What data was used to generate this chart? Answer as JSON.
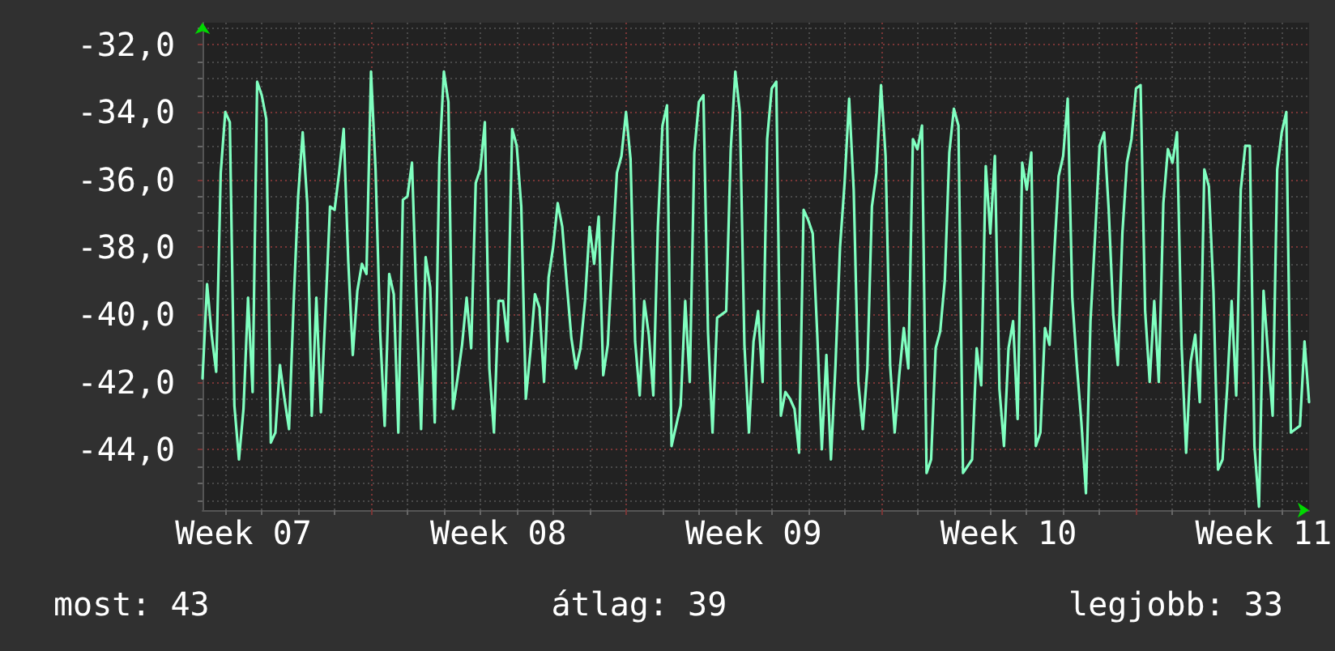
{
  "chart_data": {
    "type": "line",
    "color": "#80ffc0",
    "marker": "none",
    "grid": true,
    "annotations": [
      "most: 43",
      "átlag: 39",
      "legjobb: 33"
    ],
    "categories": [
      null,
      null,
      null,
      null,
      null,
      null,
      null,
      null,
      null,
      "Week 07",
      null,
      null,
      null,
      null,
      null,
      null,
      null,
      null,
      null,
      null,
      null,
      null,
      null,
      null,
      null,
      null,
      null,
      null,
      null,
      null,
      null,
      null,
      null,
      null,
      null,
      null,
      null,
      null,
      null,
      null,
      null,
      null,
      null,
      null,
      null,
      null,
      null,
      null,
      null,
      null,
      null,
      null,
      null,
      null,
      null,
      null,
      null,
      null,
      null,
      null,
      null,
      null,
      null,
      null,
      null,
      "Week 08",
      null,
      null,
      null,
      null,
      null,
      null,
      null,
      null,
      null,
      null,
      null,
      null,
      null,
      null,
      null,
      null,
      null,
      null,
      null,
      null,
      null,
      null,
      null,
      null,
      null,
      null,
      null,
      null,
      null,
      null,
      null,
      null,
      null,
      null,
      null,
      null,
      null,
      null,
      null,
      null,
      null,
      null,
      null,
      null,
      null,
      null,
      null,
      null,
      null,
      null,
      null,
      null,
      null,
      null,
      null,
      "Week 09",
      null,
      null,
      null,
      null,
      null,
      null,
      null,
      null,
      null,
      null,
      null,
      null,
      null,
      null,
      null,
      null,
      null,
      null,
      null,
      null,
      null,
      null,
      null,
      null,
      null,
      null,
      null,
      null,
      null,
      null,
      null,
      null,
      null,
      null,
      null,
      null,
      null,
      null,
      null,
      null,
      null,
      null,
      null,
      null,
      null,
      null,
      null,
      null,
      null,
      null,
      null,
      null,
      null,
      null,
      null,
      "Week 10",
      null,
      null,
      null,
      null,
      null,
      null,
      null,
      null,
      null,
      null,
      null,
      null,
      null,
      null,
      null,
      null,
      null,
      null,
      null,
      null,
      null,
      null,
      null,
      null,
      null,
      null,
      null,
      null,
      null,
      null,
      null,
      null,
      null,
      null,
      null,
      null,
      null,
      null,
      null,
      null,
      null,
      null,
      null,
      null,
      null,
      null,
      null,
      null,
      null,
      null,
      null,
      null,
      null,
      null,
      null,
      "Week 11",
      null,
      null,
      null,
      null,
      null,
      null,
      null,
      null,
      null,
      null
    ],
    "ylim": [
      -45.8,
      -31.35
    ],
    "yticks": [
      {
        "value": -32,
        "label": "-32,0"
      },
      {
        "value": -34,
        "label": "-34,0"
      },
      {
        "value": -36,
        "label": "-36,0"
      },
      {
        "value": -38,
        "label": "-38,0"
      },
      {
        "value": -40,
        "label": "-40,0"
      },
      {
        "value": -42,
        "label": "-42,0"
      },
      {
        "value": -44,
        "label": "-44,0"
      },
      {
        "value": -45.5,
        "label": null
      },
      {
        "value": -45,
        "label": null
      },
      {
        "value": -44.5,
        "label": null
      },
      {
        "value": -43.5,
        "label": null
      },
      {
        "value": -43,
        "label": null
      },
      {
        "value": -42.5,
        "label": null
      },
      {
        "value": -41.5,
        "label": null
      },
      {
        "value": -41,
        "label": null
      },
      {
        "value": -40.5,
        "label": null
      },
      {
        "value": -39.5,
        "label": null
      },
      {
        "value": -39,
        "label": null
      },
      {
        "value": -38.5,
        "label": null
      },
      {
        "value": -37.5,
        "label": null
      },
      {
        "value": -37,
        "label": null
      },
      {
        "value": -36.5,
        "label": null
      },
      {
        "value": -35.5,
        "label": null
      },
      {
        "value": -35,
        "label": null
      },
      {
        "value": -34.5,
        "label": null
      },
      {
        "value": -33.5,
        "label": null
      },
      {
        "value": -33,
        "label": null
      },
      {
        "value": -32.5,
        "label": null
      },
      {
        "value": -31.5,
        "label": null
      }
    ],
    "values": [
      -41.9,
      -39.1,
      -40.6,
      -41.7,
      -35.8,
      -34.0,
      -34.3,
      -42.7,
      -44.3,
      -42.8,
      -39.5,
      -42.3,
      -33.1,
      -33.5,
      -34.2,
      -43.8,
      -43.5,
      -41.5,
      -42.5,
      -43.4,
      -39.7,
      -36.5,
      -34.6,
      -36.7,
      -43.0,
      -39.5,
      -42.9,
      -39.9,
      -36.8,
      -36.9,
      -35.8,
      -34.5,
      -38.4,
      -41.2,
      -39.3,
      -38.5,
      -38.8,
      -32.8,
      -35.7,
      -40.5,
      -43.3,
      -38.8,
      -39.4,
      -43.5,
      -36.6,
      -36.5,
      -35.5,
      -39.7,
      -43.4,
      -38.3,
      -39.2,
      -43.2,
      -35.5,
      -32.8,
      -33.7,
      -42.8,
      -41.9,
      -40.9,
      -39.5,
      -41.0,
      -36.1,
      -35.7,
      -34.3,
      -41.6,
      -43.5,
      -39.6,
      -39.6,
      -40.8,
      -34.5,
      -35.0,
      -36.8,
      -42.5,
      -41.1,
      -39.4,
      -39.8,
      -42.0,
      -38.9,
      -38.0,
      -36.7,
      -37.4,
      -39.1,
      -40.7,
      -41.6,
      -41.0,
      -39.6,
      -37.4,
      -38.5,
      -37.1,
      -41.8,
      -40.9,
      -38.2,
      -35.8,
      -35.3,
      -34.0,
      -35.4,
      -40.8,
      -42.4,
      -39.6,
      -40.6,
      -42.4,
      -37.4,
      -34.4,
      -33.8,
      -43.9,
      -43.3,
      -42.7,
      -39.6,
      -42.0,
      -35.2,
      -33.7,
      -33.5,
      -40.5,
      -43.5,
      -40.1,
      -40.0,
      -39.9,
      -35.1,
      -32.8,
      -34.0,
      -40.9,
      -43.5,
      -40.8,
      -39.9,
      -42.0,
      -34.8,
      -33.3,
      -33.1,
      -43.0,
      -42.3,
      -42.5,
      -42.8,
      -44.1,
      -36.9,
      -37.2,
      -37.6,
      -40.6,
      -44.0,
      -41.2,
      -44.3,
      -41.5,
      -38.0,
      -36.1,
      -33.6,
      -36.3,
      -42.0,
      -43.4,
      -41.6,
      -36.8,
      -35.8,
      -33.2,
      -35.3,
      -41.5,
      -43.5,
      -41.8,
      -40.4,
      -41.6,
      -34.8,
      -35.1,
      -34.4,
      -44.7,
      -44.3,
      -41.0,
      -40.5,
      -39.0,
      -35.2,
      -33.9,
      -34.4,
      -44.7,
      -44.5,
      -44.3,
      -41.0,
      -42.1,
      -35.6,
      -37.6,
      -35.3,
      -42.2,
      -43.9,
      -41.0,
      -40.2,
      -43.1,
      -35.5,
      -36.3,
      -35.2,
      -43.9,
      -43.5,
      -40.4,
      -40.9,
      -38.3,
      -35.9,
      -35.3,
      -33.6,
      -39.5,
      -41.5,
      -43.2,
      -45.3,
      -40.2,
      -37.7,
      -35.0,
      -34.6,
      -36.9,
      -40.0,
      -41.5,
      -37.6,
      -35.5,
      -34.8,
      -33.3,
      -33.2,
      -39.9,
      -42.0,
      -39.6,
      -42.0,
      -36.7,
      -35.1,
      -35.5,
      -34.6,
      -40.9,
      -44.1,
      -41.4,
      -40.6,
      -42.6,
      -35.7,
      -36.2,
      -39.3,
      -44.6,
      -44.3,
      -42.2,
      -39.6,
      -42.4,
      -36.3,
      -35.0,
      -35.0,
      -43.9,
      -45.7,
      -39.3,
      -41.2,
      -43.0,
      -35.7,
      -34.6,
      -34.0,
      -43.5,
      -43.4,
      -43.3,
      -40.8,
      -42.6
    ]
  }
}
